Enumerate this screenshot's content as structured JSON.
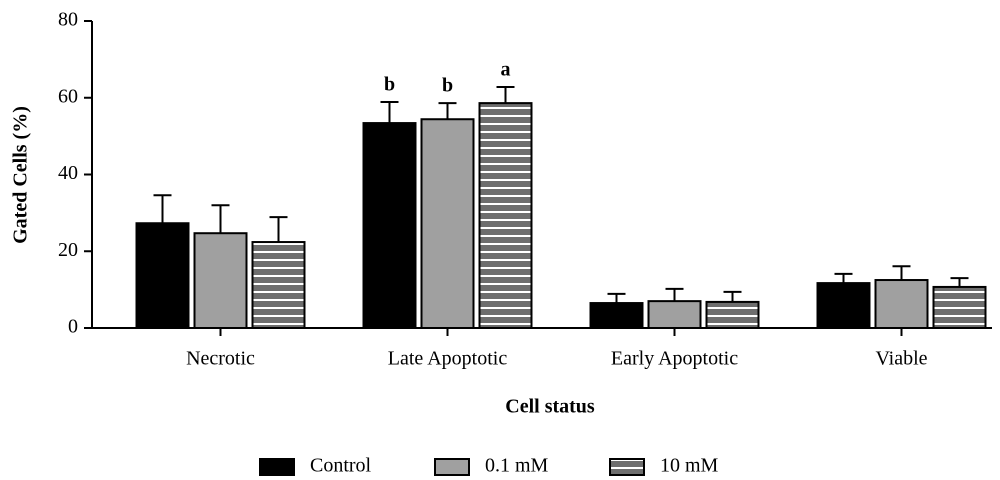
{
  "chart_data": {
    "type": "bar",
    "x_label": "Cell status",
    "y_label": "Gated Cells (%)",
    "categories": [
      "Necrotic",
      "Late Apoptotic",
      "Early Apoptotic",
      "Viable"
    ],
    "series": [
      {
        "name": "Control",
        "color": "#000000",
        "values": [
          27.3,
          53.4,
          6.5,
          11.7
        ],
        "errors": [
          7.3,
          5.5,
          2.4,
          2.4
        ],
        "significance": [
          null,
          "b",
          null,
          null
        ]
      },
      {
        "name": "0.1 mM",
        "color": "#a0a0a0",
        "values": [
          24.7,
          54.4,
          7.0,
          12.5
        ],
        "errors": [
          7.3,
          4.2,
          3.2,
          3.6
        ],
        "significance": [
          null,
          "b",
          null,
          null
        ]
      },
      {
        "name": "10 mM",
        "color": "#6e6e6e",
        "hatch": "horizontal",
        "values": [
          22.4,
          58.6,
          6.8,
          10.7
        ],
        "errors": [
          6.5,
          4.2,
          2.6,
          2.3
        ],
        "significance": [
          null,
          "a",
          null,
          null
        ]
      }
    ],
    "ylim": [
      0,
      80
    ],
    "yticks": [
      0,
      20,
      40,
      60,
      80
    ],
    "legend": "bottom"
  }
}
